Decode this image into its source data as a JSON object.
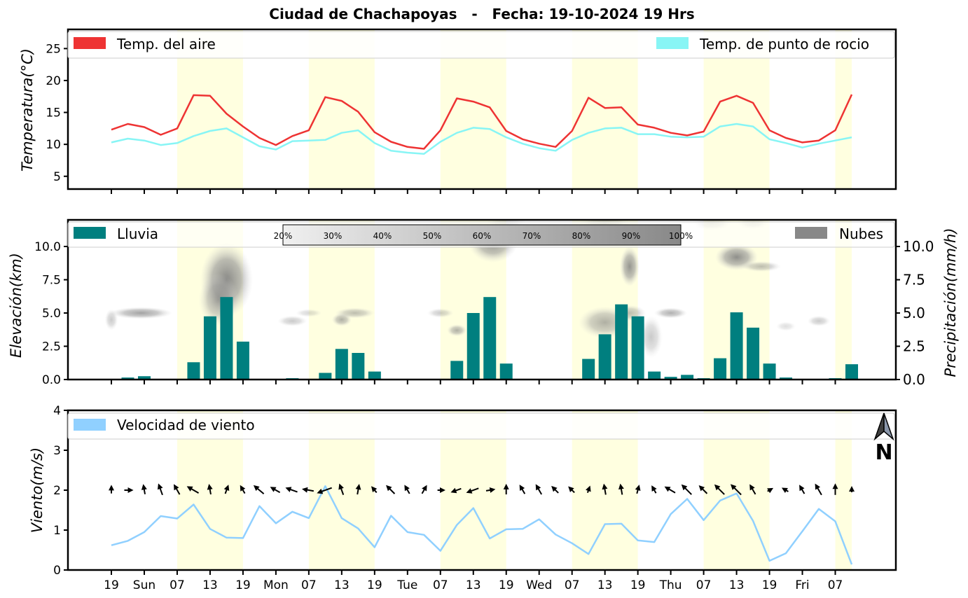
{
  "title": "Ciudad de Chachapoyas   -   Fecha: 19-10-2024 19 Hrs",
  "colors": {
    "air_temp": "#ee3333",
    "dew_point": "#88f5f5",
    "rain": "#007f7f",
    "clouds": "#888888",
    "wind": "#90d0ff",
    "day_band": "#ffffe0"
  },
  "time_axis": {
    "start_index": 0,
    "end_index": 45,
    "step_hours": 3,
    "tick_labels": [
      "19",
      "Sun",
      "07",
      "13",
      "19",
      "Mon",
      "07",
      "13",
      "19",
      "Tue",
      "07",
      "13",
      "19",
      "Wed",
      "07",
      "13",
      "19",
      "Thu",
      "07",
      "13",
      "19",
      "Fri",
      "07"
    ],
    "day_bands": [
      [
        4,
        8
      ],
      [
        12,
        16
      ],
      [
        20,
        24
      ],
      [
        28,
        32
      ],
      [
        36,
        40
      ],
      [
        44,
        45
      ]
    ]
  },
  "chart_data": [
    {
      "type": "line",
      "ylabel": "Temperatura(°C)",
      "ylim": [
        3,
        28
      ],
      "yticks": [
        5,
        10,
        15,
        20,
        25
      ],
      "legend": "top",
      "series": [
        {
          "name": "Temp. del aire",
          "color": "#ee3333",
          "values": [
            12.3,
            13.2,
            12.7,
            11.5,
            12.5,
            17.7,
            17.6,
            14.8,
            12.8,
            11.0,
            9.9,
            11.3,
            12.2,
            17.4,
            16.8,
            15.1,
            11.9,
            10.4,
            9.6,
            9.3,
            12.2,
            17.2,
            16.7,
            15.8,
            12.1,
            10.8,
            10.1,
            9.6,
            12.1,
            17.3,
            15.7,
            15.8,
            13.1,
            12.6,
            11.8,
            11.4,
            12.0,
            16.7,
            17.6,
            16.5,
            12.2,
            11.0,
            10.3,
            10.6,
            12.2,
            17.8
          ]
        },
        {
          "name": "Temp. de punto de rocio",
          "color": "#88f5f5",
          "values": [
            10.3,
            10.9,
            10.6,
            9.9,
            10.2,
            11.3,
            12.1,
            12.5,
            11.1,
            9.7,
            9.2,
            10.5,
            10.6,
            10.7,
            11.8,
            12.2,
            10.2,
            9.0,
            8.7,
            8.5,
            10.4,
            11.8,
            12.6,
            12.4,
            11.1,
            10.1,
            9.4,
            9.0,
            10.7,
            11.8,
            12.5,
            12.6,
            11.6,
            11.6,
            11.2,
            11.1,
            11.2,
            12.8,
            13.2,
            12.8,
            10.8,
            10.2,
            9.5,
            10.1,
            10.6,
            11.1
          ]
        }
      ]
    },
    {
      "type": "bar",
      "ylabel": "Elevación(km)",
      "ylabel_right": "Precipitación(mm/h)",
      "ylim": [
        0,
        12
      ],
      "yticks": [
        0.0,
        2.5,
        5.0,
        7.5,
        10.0
      ],
      "yticks_labels": [
        "0.0",
        "2.5",
        "5.0",
        "7.5",
        "10.0"
      ],
      "legend_left": "Lluvia",
      "legend_right": "Nubes",
      "series": [
        {
          "name": "Lluvia",
          "color": "#007f7f",
          "values": [
            0,
            0.15,
            0.25,
            0.05,
            0,
            1.3,
            4.75,
            6.2,
            2.85,
            0,
            0,
            0.1,
            0.05,
            0.5,
            2.3,
            2.0,
            0.6,
            0,
            0,
            0,
            0.05,
            1.4,
            5.0,
            6.2,
            1.2,
            0,
            0,
            0,
            0.05,
            1.55,
            3.4,
            5.65,
            4.75,
            0.6,
            0.2,
            0.35,
            0.1,
            1.6,
            5.05,
            3.9,
            1.2,
            0.15,
            0.05,
            0.05,
            0.1,
            1.15
          ]
        }
      ],
      "clouds": [
        {
          "x": 7.0,
          "z": 7.5,
          "rx": 1.6,
          "rz": 2.8,
          "density": 0.9
        },
        {
          "x": 6.5,
          "z": 6.0,
          "rx": 1.2,
          "rz": 2.0,
          "density": 0.6
        },
        {
          "x": 1.8,
          "z": 5.0,
          "rx": 1.9,
          "rz": 0.45,
          "density": 0.7
        },
        {
          "x": 0.0,
          "z": 4.5,
          "rx": 0.4,
          "rz": 0.8,
          "density": 0.4
        },
        {
          "x": 11.0,
          "z": 4.4,
          "rx": 0.9,
          "rz": 0.4,
          "density": 0.4
        },
        {
          "x": 12.0,
          "z": 5.0,
          "rx": 0.8,
          "rz": 0.3,
          "density": 0.3
        },
        {
          "x": 14.0,
          "z": 4.5,
          "rx": 0.6,
          "rz": 0.5,
          "density": 0.6
        },
        {
          "x": 14.8,
          "z": 5.0,
          "rx": 1.2,
          "rz": 0.4,
          "density": 0.5
        },
        {
          "x": 20.0,
          "z": 5.0,
          "rx": 0.8,
          "rz": 0.35,
          "density": 0.4
        },
        {
          "x": 21.0,
          "z": 3.7,
          "rx": 0.6,
          "rz": 0.45,
          "density": 0.6
        },
        {
          "x": 23.2,
          "z": 10.3,
          "rx": 1.5,
          "rz": 1.5,
          "density": 0.8
        },
        {
          "x": 30.0,
          "z": 4.3,
          "rx": 1.6,
          "rz": 1.2,
          "density": 0.6
        },
        {
          "x": 31.5,
          "z": 5.0,
          "rx": 1.0,
          "rz": 0.6,
          "density": 0.5
        },
        {
          "x": 31.5,
          "z": 8.5,
          "rx": 0.6,
          "rz": 1.5,
          "density": 0.8
        },
        {
          "x": 32.8,
          "z": 3.2,
          "rx": 0.7,
          "rz": 1.6,
          "density": 0.4
        },
        {
          "x": 34.0,
          "z": 5.0,
          "rx": 1.0,
          "rz": 0.4,
          "density": 0.6
        },
        {
          "x": 38.0,
          "z": 9.2,
          "rx": 1.3,
          "rz": 1.0,
          "density": 0.85
        },
        {
          "x": 39.5,
          "z": 8.5,
          "rx": 1.2,
          "rz": 0.4,
          "density": 0.5
        },
        {
          "x": 43.0,
          "z": 4.4,
          "rx": 0.7,
          "rz": 0.4,
          "density": 0.4
        },
        {
          "x": 41.0,
          "z": 4.0,
          "rx": 0.6,
          "rz": 0.35,
          "density": 0.25
        },
        {
          "x": 36.5,
          "z": 11.8,
          "rx": 1.2,
          "rz": 0.6,
          "density": 0.3
        },
        {
          "x": 30.0,
          "z": 11.8,
          "rx": 1.5,
          "rz": 0.6,
          "density": 0.3
        },
        {
          "x": 24.0,
          "z": 11.8,
          "rx": 1.2,
          "rz": 0.5,
          "density": 0.25
        },
        {
          "x": 39.0,
          "z": 11.8,
          "rx": 1.0,
          "rz": 0.5,
          "density": 0.25
        }
      ],
      "cloud_colorbar": [
        "20%",
        "30%",
        "40%",
        "50%",
        "60%",
        "70%",
        "80%",
        "90%",
        "100%"
      ]
    },
    {
      "type": "line",
      "ylabel": "Viento(m/s)",
      "ylim": [
        0,
        4
      ],
      "yticks": [
        0,
        1,
        2,
        3,
        4
      ],
      "legend": "top",
      "north_label": "N",
      "series": [
        {
          "name": "Velocidad de viento",
          "color": "#90d0ff",
          "values": [
            0.62,
            0.73,
            0.95,
            1.35,
            1.29,
            1.64,
            1.03,
            0.81,
            0.8,
            1.6,
            1.17,
            1.46,
            1.3,
            2.1,
            1.3,
            1.04,
            0.57,
            1.36,
            0.95,
            0.88,
            0.48,
            1.13,
            1.55,
            0.79,
            1.02,
            1.03,
            1.27,
            0.89,
            0.67,
            0.4,
            1.15,
            1.16,
            0.74,
            0.7,
            1.4,
            1.78,
            1.25,
            1.74,
            1.92,
            1.23,
            0.23,
            0.42,
            0.97,
            1.53,
            1.22,
            0.14
          ]
        }
      ],
      "wind_dir_deg": [
        180,
        270,
        170,
        160,
        150,
        120,
        170,
        200,
        150,
        130,
        120,
        110,
        100,
        70,
        160,
        190,
        140,
        135,
        150,
        210,
        270,
        70,
        70,
        260,
        180,
        150,
        150,
        135,
        135,
        200,
        170,
        170,
        195,
        150,
        120,
        135,
        135,
        135,
        135,
        150,
        240,
        120,
        150,
        150,
        180,
        180
      ]
    }
  ]
}
